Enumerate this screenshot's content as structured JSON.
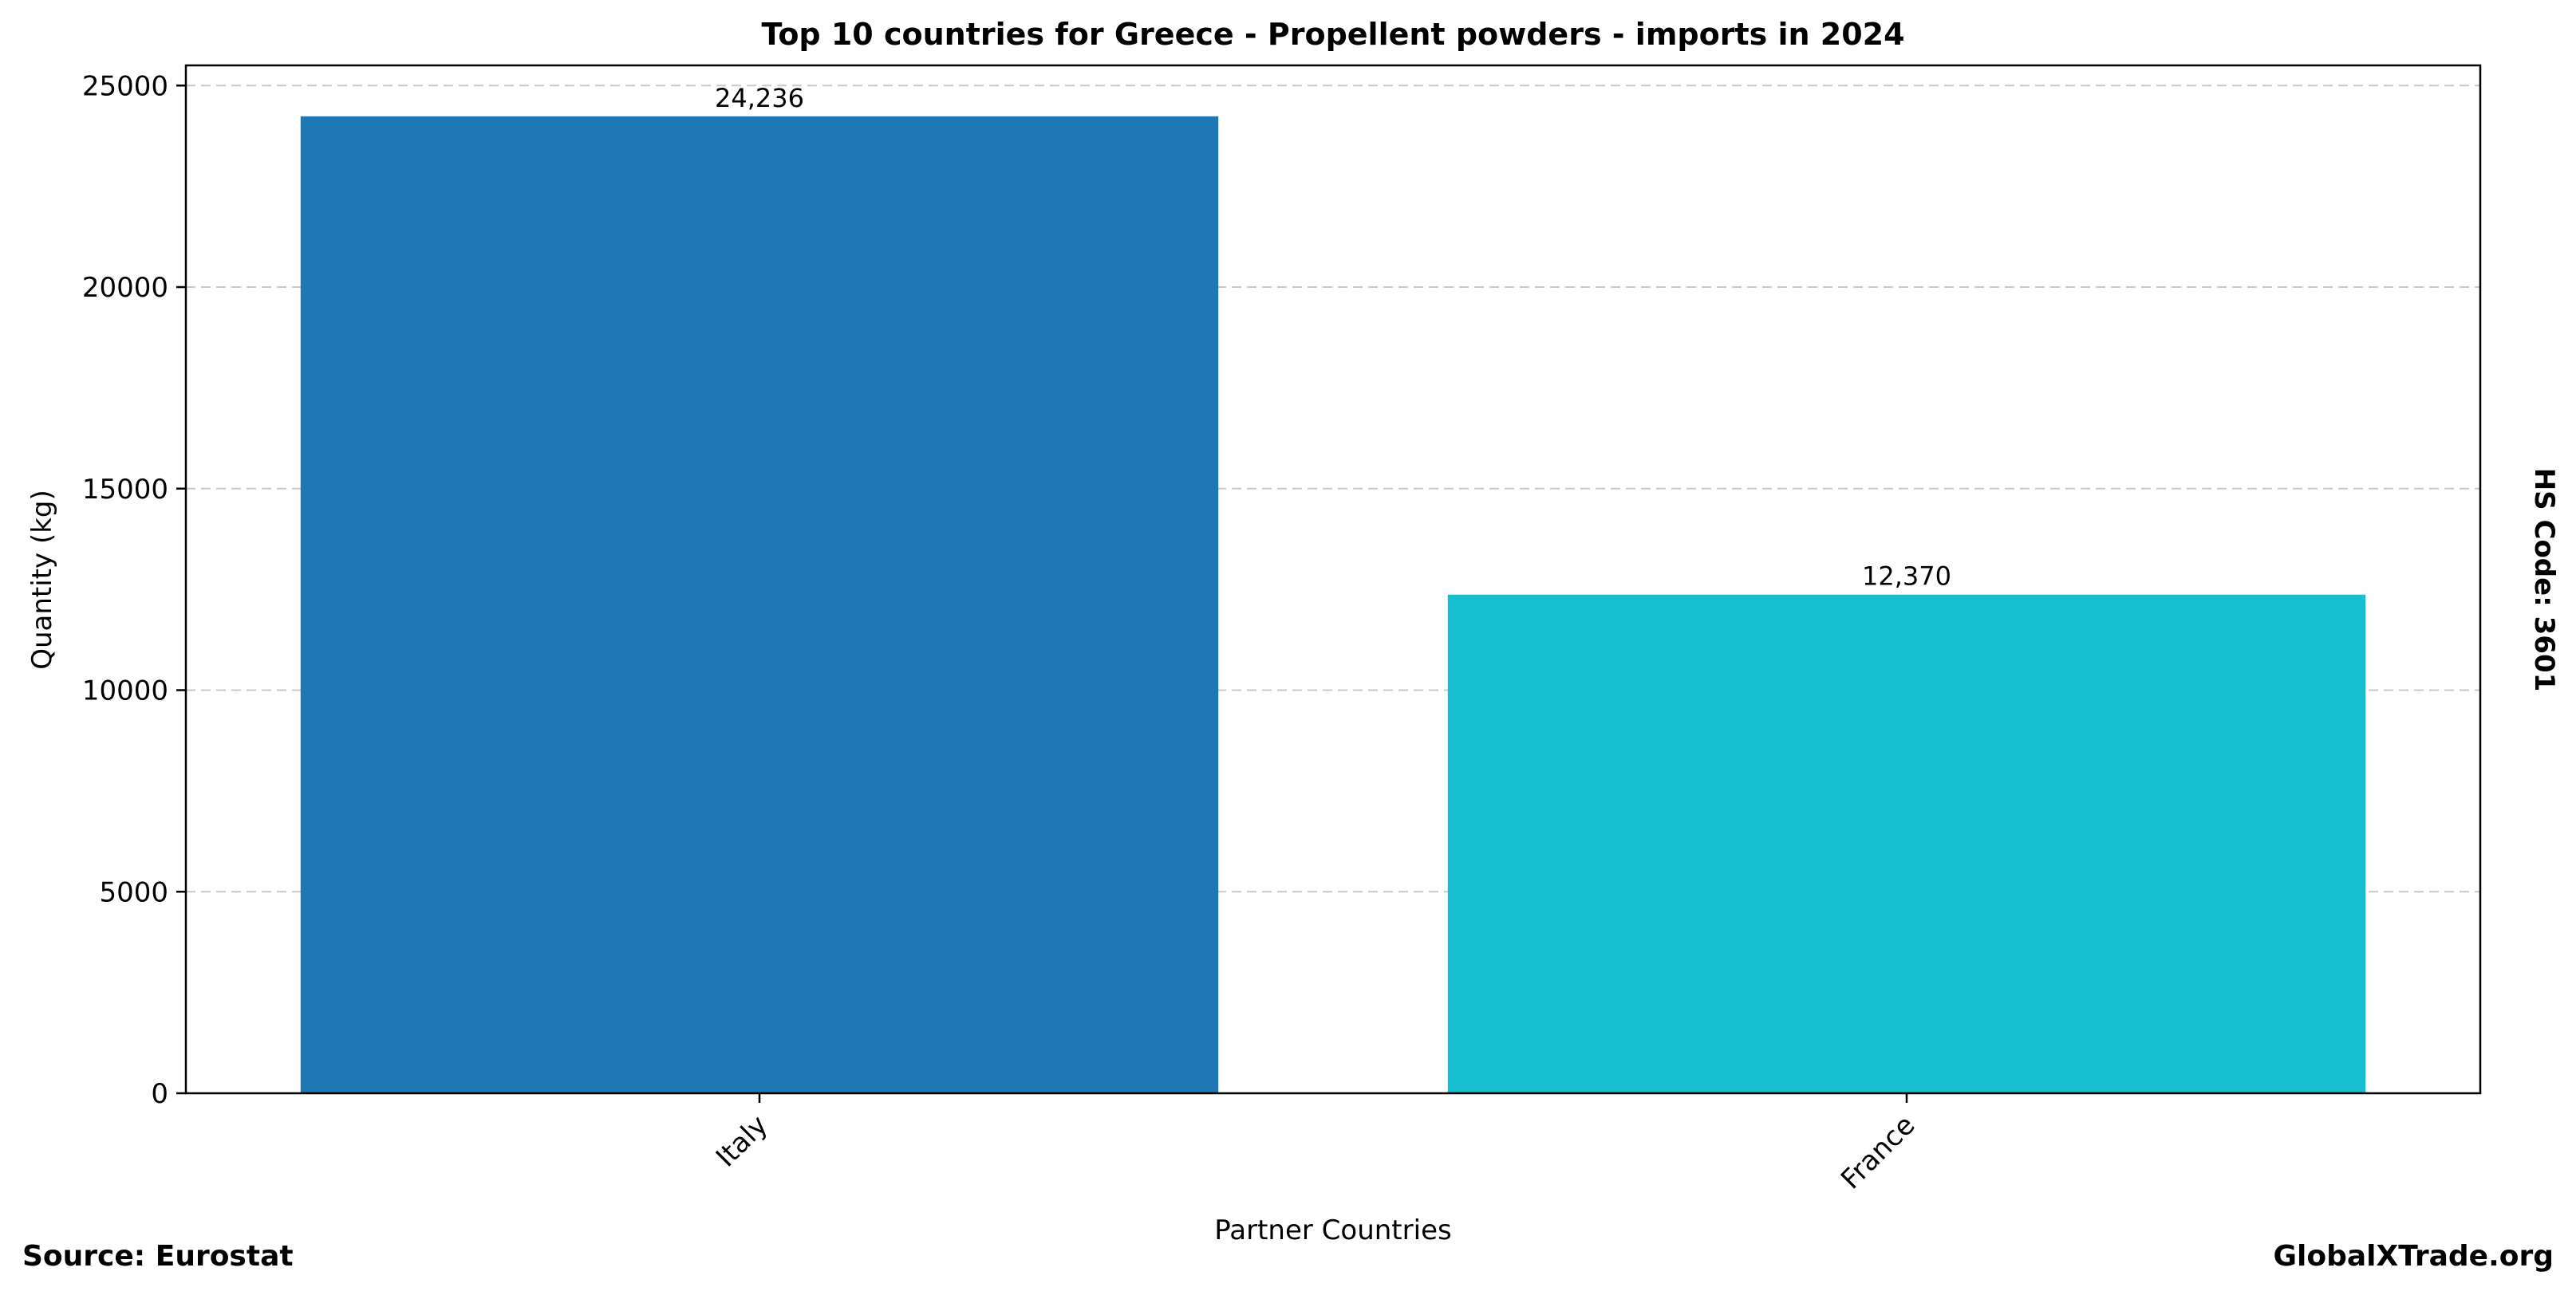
{
  "chart_data": {
    "type": "bar",
    "title": "Top 10 countries for Greece - Propellent powders - imports in 2024",
    "xlabel": "Partner Countries",
    "ylabel": "Quantity (kg)",
    "categories": [
      "Italy",
      "France"
    ],
    "values": [
      24236,
      12370
    ],
    "value_labels": [
      "24,236",
      "12,370"
    ],
    "colors": [
      "#1f77b4",
      "#17becf"
    ],
    "ylim": [
      0,
      25500
    ],
    "yticks": [
      0,
      5000,
      10000,
      15000,
      20000,
      25000
    ],
    "grid": "y-dashed",
    "side_label": "HS Code: 3601"
  },
  "footer": {
    "source": "Source: Eurostat",
    "site": "GlobalXTrade.org"
  }
}
